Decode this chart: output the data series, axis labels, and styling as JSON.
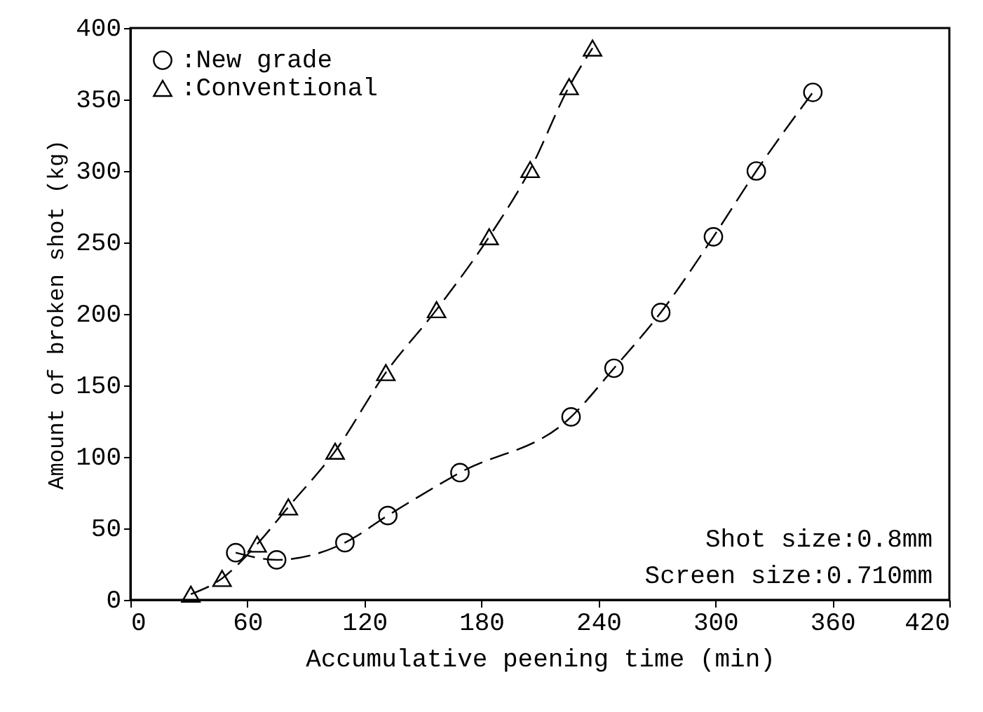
{
  "chart_data": {
    "type": "line",
    "xlabel": "Accumulative peening time (min)",
    "ylabel": "Amount of broken shot (kg)",
    "xlim": [
      0,
      420
    ],
    "xticks": [
      0,
      60,
      120,
      180,
      240,
      300,
      360,
      420
    ],
    "ylim": [
      0,
      400
    ],
    "yticks": [
      0,
      50,
      100,
      150,
      200,
      250,
      300,
      350,
      400
    ],
    "grid": false,
    "legend": "top left",
    "line_style": "dashed",
    "annotations": [
      "Shot size:0.8mm",
      "Screen size:0.710mm"
    ],
    "series": [
      {
        "name": ":New grade",
        "color": "#000000",
        "marker": "circle",
        "x": [
          54,
          75,
          110,
          132,
          169,
          226,
          248,
          272,
          299,
          321,
          350
        ],
        "values": [
          33,
          28,
          40,
          59,
          89,
          128,
          162,
          201,
          254,
          300,
          355
        ]
      },
      {
        "name": ":Conventional",
        "color": "#000000",
        "marker": "triangle",
        "x": [
          31,
          47,
          65,
          81,
          105,
          131,
          157,
          184,
          205,
          225,
          237
        ],
        "values": [
          4,
          15,
          39,
          65,
          104,
          159,
          203,
          254,
          301,
          359,
          386
        ]
      }
    ]
  }
}
